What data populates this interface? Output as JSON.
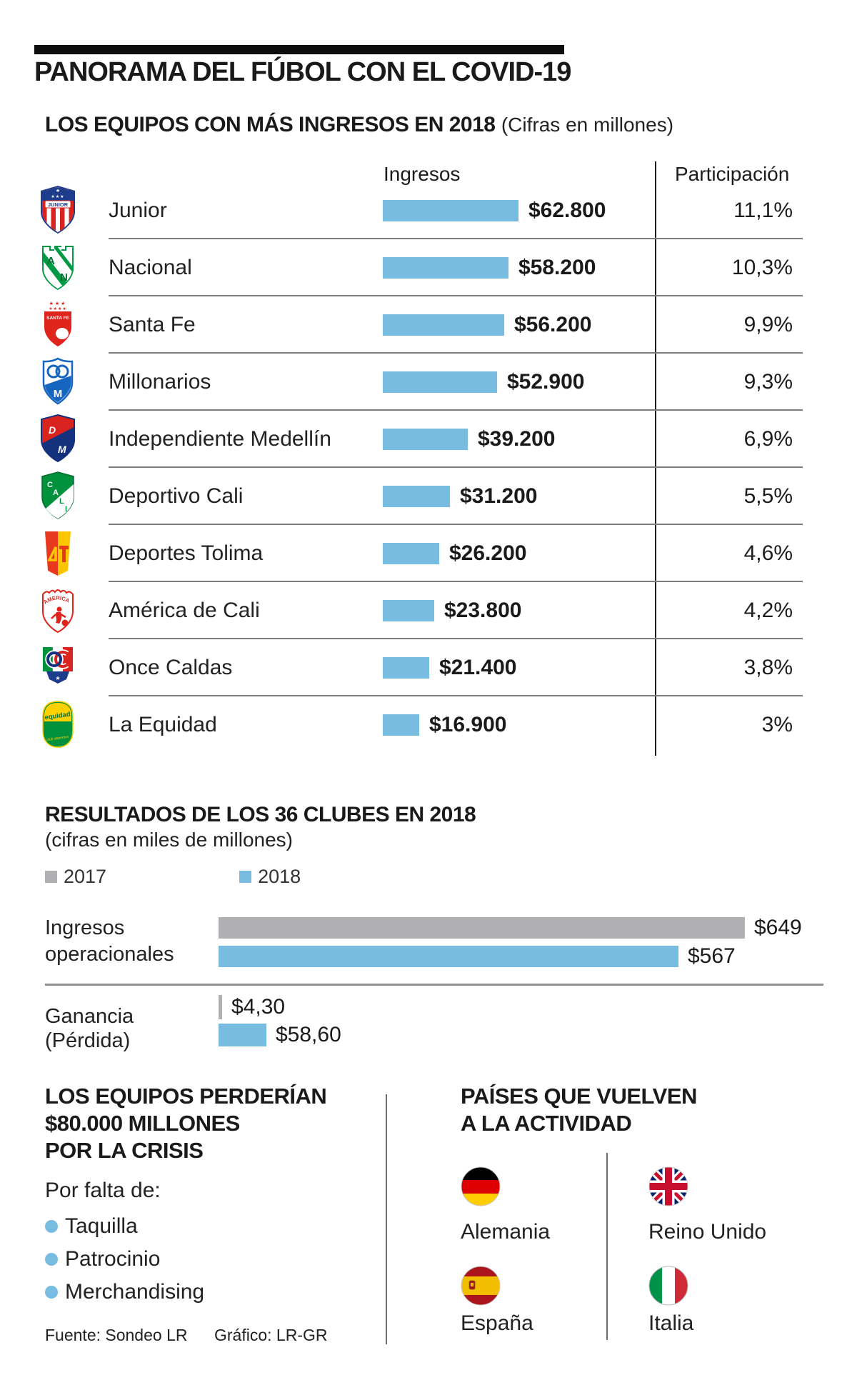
{
  "header": {
    "title": "PANORAMA DEL FÚBOL CON EL COVID-19",
    "subtitle": "LOS EQUIPOS CON MÁS INGRESOS EN 2018",
    "subtitle_note": "(Cifras en millones)"
  },
  "income_table": {
    "col_income": "Ingresos",
    "col_share": "Participación",
    "max_value": 62800,
    "bar_color": "#79bce2",
    "rows": [
      {
        "team": "Junior",
        "value": 62800,
        "value_label": "$62.800",
        "share": "11,1%"
      },
      {
        "team": "Nacional",
        "value": 58200,
        "value_label": "$58.200",
        "share": "10,3%"
      },
      {
        "team": "Santa Fe",
        "value": 56200,
        "value_label": "$56.200",
        "share": "9,9%"
      },
      {
        "team": "Millonarios",
        "value": 52900,
        "value_label": "$52.900",
        "share": "9,3%"
      },
      {
        "team": "Independiente Medellín",
        "value": 39200,
        "value_label": "$39.200",
        "share": "6,9%"
      },
      {
        "team": "Deportivo Cali",
        "value": 31200,
        "value_label": "$31.200",
        "share": "5,5%"
      },
      {
        "team": "Deportes Tolima",
        "value": 26200,
        "value_label": "$26.200",
        "share": "4,6%"
      },
      {
        "team": "América de Cali",
        "value": 23800,
        "value_label": "$23.800",
        "share": "4,2%"
      },
      {
        "team": "Once Caldas",
        "value": 21400,
        "value_label": "$21.400",
        "share": "3,8%"
      },
      {
        "team": "La Equidad",
        "value": 16900,
        "value_label": "$16.900",
        "share": "3%"
      }
    ]
  },
  "results_chart": {
    "title": "RESULTADOS DE LOS 36 CLUBES EN 2018",
    "subtitle": "(cifras en miles de millones)",
    "max_value": 649,
    "legend": [
      {
        "label": "2017",
        "color": "#b0b0b3"
      },
      {
        "label": "2018",
        "color": "#79bce2"
      }
    ],
    "groups": [
      {
        "label_line1": "Ingresos",
        "label_line2": "operacionales",
        "values": [
          {
            "year": "2017",
            "value": 649,
            "label": "$649"
          },
          {
            "year": "2018",
            "value": 567,
            "label": "$567"
          }
        ]
      },
      {
        "label_line1": "Ganancia",
        "label_line2": "(Pérdida)",
        "values": [
          {
            "year": "2017",
            "value": 4.3,
            "label": "$4,30"
          },
          {
            "year": "2018",
            "value": 58.6,
            "label": "$58,60"
          }
        ]
      }
    ]
  },
  "crisis_note": {
    "title_line1": "LOS EQUIPOS PERDERÍAN",
    "title_line2": "$80.000 MILLONES",
    "title_line3": "POR LA CRISIS",
    "intro": "Por falta de:",
    "bullet_color": "#79bce2",
    "bullets": [
      "Taquilla",
      "Patrocinio",
      "Merchandising"
    ]
  },
  "countries_section": {
    "title_line1": "PAÍSES QUE VUELVEN",
    "title_line2": "A LA ACTIVIDAD",
    "items": [
      {
        "name": "Alemania"
      },
      {
        "name": "Reino Unido"
      },
      {
        "name": "España"
      },
      {
        "name": "Italia"
      }
    ]
  },
  "footer": {
    "source": "Fuente: Sondeo LR",
    "credit": "Gráfico: LR-GR"
  },
  "logos": {
    "junior": {
      "wordmark": "JUNIOR",
      "stars_row1": "★",
      "stars_row2": "★★★"
    },
    "nacional": {
      "letter1": "A",
      "letter2": "N"
    },
    "santafe": {
      "wordmark": "SANTA FE",
      "stars_row1": "★★★",
      "stars_row2": "★★★★"
    },
    "millonarios": {
      "letter": "M"
    },
    "dim": {
      "letter1": "D",
      "letter2": "M"
    },
    "cali": {
      "l1": "C",
      "l2": "A",
      "l3": "L",
      "l4": "I"
    },
    "america": {
      "wordmark": "AMERICA"
    },
    "oncecaldas": {
      "star": "★"
    },
    "equidad": {
      "wordmark": "equidad",
      "tagline": "club deportivo"
    }
  },
  "chart_data": [
    {
      "type": "bar",
      "orientation": "horizontal",
      "title": "LOS EQUIPOS CON MÁS INGRESOS EN 2018 (Cifras en millones)",
      "categories": [
        "Junior",
        "Nacional",
        "Santa Fe",
        "Millonarios",
        "Independiente Medellín",
        "Deportivo Cali",
        "Deportes Tolima",
        "América de Cali",
        "Once Caldas",
        "La Equidad"
      ],
      "series": [
        {
          "name": "Ingresos",
          "values": [
            62800,
            58200,
            56200,
            52900,
            39200,
            31200,
            26200,
            23800,
            21400,
            16900
          ]
        },
        {
          "name": "Participación",
          "values": [
            "11,1%",
            "10,3%",
            "9,9%",
            "9,3%",
            "6,9%",
            "5,5%",
            "4,6%",
            "4,2%",
            "3,8%",
            "3%"
          ]
        }
      ],
      "xlabel": "",
      "ylabel": "",
      "xlim": [
        0,
        62800
      ],
      "grid": false,
      "legend_position": "none"
    },
    {
      "type": "bar",
      "orientation": "horizontal",
      "title": "RESULTADOS DE LOS 36 CLUBES EN 2018 (cifras en miles de millones)",
      "categories": [
        "Ingresos operacionales",
        "Ganancia (Pérdida)"
      ],
      "series": [
        {
          "name": "2017",
          "values": [
            649,
            4.3
          ]
        },
        {
          "name": "2018",
          "values": [
            567,
            58.6
          ]
        }
      ],
      "xlabel": "",
      "ylabel": "",
      "xlim": [
        0,
        649
      ],
      "grid": false,
      "legend_position": "top-left"
    }
  ]
}
